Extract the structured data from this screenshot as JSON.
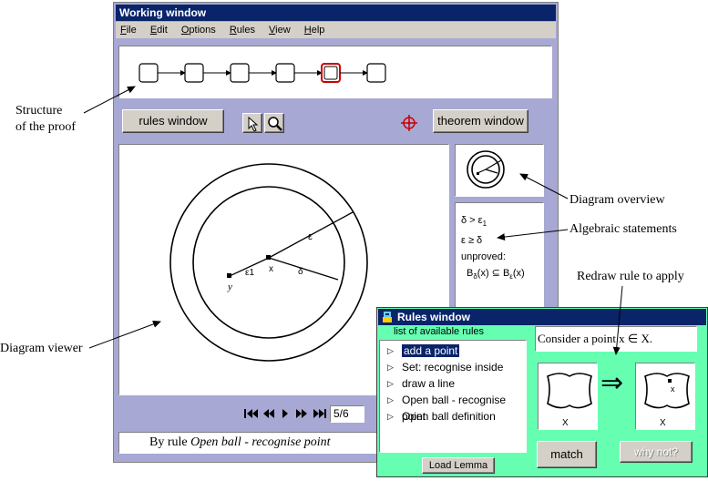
{
  "working_window": {
    "title": "Working window",
    "menu": [
      {
        "label": "File",
        "accel": "F",
        "rest": "ile"
      },
      {
        "label": "Edit",
        "accel": "E",
        "rest": "dit"
      },
      {
        "label": "Options",
        "accel": "O",
        "rest": "ptions"
      },
      {
        "label": "Rules",
        "accel": "R",
        "rest": "ules"
      },
      {
        "label": "View",
        "accel": "V",
        "rest": "iew"
      },
      {
        "label": "Help",
        "accel": "H",
        "rest": "elp"
      }
    ],
    "proof_steps": 6,
    "current_step": 5,
    "rules_window_button": "rules window",
    "theorem_window_button": "theorem window",
    "diagram_labels": {
      "eps": "ε",
      "x": "x",
      "y": "y",
      "delta": "δ",
      "eps1": "ε1"
    },
    "algebra": {
      "line1": "δ > ε",
      "line1_sub": "1",
      "line2": "ε ≥ δ",
      "line3": "unproved:",
      "line4_a": "B",
      "line4_a_sub": "δ",
      "line4_b": "(x) ⊆ B",
      "line4_c_sub": "ε",
      "line4_d": "(x)"
    },
    "step_field": "5/6",
    "status_prefix": "By rule",
    "status_rule": "Open ball - recognise point"
  },
  "rules_window": {
    "title": "Rules window",
    "list_label": "list of available rules",
    "rules": [
      {
        "label": "add a point",
        "selected": true
      },
      {
        "label": "Set: recognise inside",
        "selected": false
      },
      {
        "label": "draw a line",
        "selected": false
      },
      {
        "label": "Open ball - recognise point",
        "selected": false
      },
      {
        "label": "Open ball definition",
        "selected": false
      }
    ],
    "statement": "Consider a point x ∈ X.",
    "load_lemma_button": "Load Lemma",
    "match_button": "match",
    "why_not_button": "why not?",
    "arrow_symbol": "⇒",
    "left_diagram_label": "X",
    "right_diagram_label": "X",
    "right_point_label": "x"
  },
  "annotations": {
    "structure": "Structure\nof the proof",
    "overview": "Diagram overview",
    "algebraic": "Algebraic statements",
    "redraw": "Redraw rule to apply",
    "viewer": "Diagram viewer"
  },
  "colors": {
    "titlebar": "#0a246a",
    "window_bg": "#a8a8d4",
    "rules_bg": "#66ffb2",
    "chrome": "#d4d0c8",
    "highlight_step": "#cc0000"
  }
}
